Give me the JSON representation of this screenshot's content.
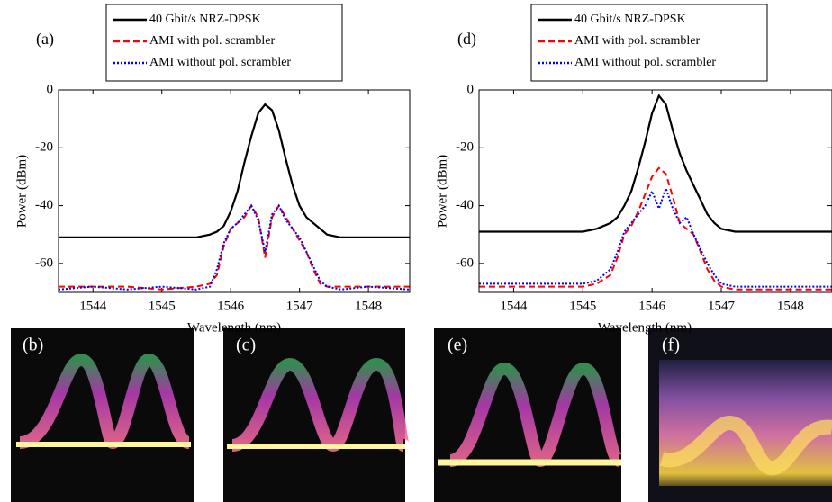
{
  "chart_data": [
    {
      "type": "line",
      "panel_label": "(a)",
      "xlabel": "Wavelength (nm)",
      "ylabel": "Power (dBm)",
      "x": [
        1543.5,
        1544.0,
        1544.5,
        1545.0,
        1545.5,
        1545.7,
        1545.8,
        1545.9,
        1546.0,
        1546.1,
        1546.2,
        1546.3,
        1546.4,
        1546.5,
        1546.6,
        1546.7,
        1546.8,
        1546.9,
        1547.0,
        1547.1,
        1547.2,
        1547.3,
        1547.4,
        1547.6,
        1548.0,
        1548.6
      ],
      "series": [
        {
          "name": "40 Gbit/s NRZ-DPSK",
          "color": "#000000",
          "linestyle": "solid",
          "values": [
            -51,
            -51,
            -51,
            -51,
            -51,
            -50,
            -49,
            -47,
            -42,
            -35,
            -25,
            -16,
            -8,
            -5,
            -7,
            -14,
            -24,
            -33,
            -40,
            -44,
            -46,
            -48,
            -50,
            -51,
            -51,
            -51
          ]
        },
        {
          "name": "AMI with pol. scrambler",
          "color": "#ff0000",
          "linestyle": "dashed",
          "values": [
            -68,
            -68,
            -68,
            -69,
            -68,
            -67,
            -64,
            -54,
            -48,
            -46,
            -44,
            -40,
            -44,
            -58,
            -44,
            -40,
            -44,
            -48,
            -52,
            -56,
            -62,
            -67,
            -68,
            -68,
            -68,
            -68
          ]
        },
        {
          "name": "AMI without pol. scrambler",
          "color": "#0000ff",
          "linestyle": "dotted",
          "values": [
            -69,
            -68,
            -69,
            -68,
            -69,
            -68,
            -62,
            -53,
            -48,
            -46,
            -43,
            -40,
            -45,
            -56,
            -43,
            -40,
            -45,
            -48,
            -51,
            -56,
            -61,
            -66,
            -68,
            -69,
            -68,
            -69
          ]
        }
      ],
      "xlim": [
        1543.5,
        1548.6
      ],
      "ylim": [
        -70,
        0
      ],
      "xticks": [
        1544,
        1545,
        1546,
        1547,
        1548
      ],
      "yticks": [
        0,
        -20,
        -40,
        -60
      ],
      "legend": "above"
    },
    {
      "type": "line",
      "panel_label": "(d)",
      "xlabel": "Wavelength (nm)",
      "ylabel": "Power (dBm)",
      "x": [
        1543.5,
        1544.0,
        1544.5,
        1545.0,
        1545.2,
        1545.4,
        1545.5,
        1545.6,
        1545.7,
        1545.8,
        1545.9,
        1546.0,
        1546.1,
        1546.2,
        1546.3,
        1546.4,
        1546.5,
        1546.6,
        1546.7,
        1546.8,
        1546.9,
        1547.0,
        1547.2,
        1547.6,
        1548.0,
        1548.6
      ],
      "series": [
        {
          "name": "40 Gbit/s NRZ-DPSK",
          "color": "#000000",
          "linestyle": "solid",
          "values": [
            -49,
            -49,
            -49,
            -49,
            -48,
            -46,
            -44,
            -40,
            -35,
            -27,
            -18,
            -8,
            -2,
            -5,
            -14,
            -22,
            -28,
            -33,
            -38,
            -43,
            -46,
            -48,
            -49,
            -49,
            -49,
            -49
          ]
        },
        {
          "name": "AMI with pol. scrambler",
          "color": "#ff0000",
          "linestyle": "dashed",
          "values": [
            -68,
            -68,
            -68,
            -68,
            -67,
            -64,
            -58,
            -50,
            -47,
            -42,
            -36,
            -30,
            -27,
            -29,
            -37,
            -46,
            -48,
            -50,
            -56,
            -62,
            -66,
            -68,
            -69,
            -69,
            -69,
            -69
          ]
        },
        {
          "name": "AMI without pol. scrambler",
          "color": "#0000ff",
          "linestyle": "dotted",
          "values": [
            -67,
            -67,
            -67,
            -67,
            -66,
            -62,
            -56,
            -49,
            -46,
            -43,
            -40,
            -35,
            -41,
            -34,
            -41,
            -46,
            -44,
            -50,
            -55,
            -60,
            -64,
            -67,
            -68,
            -68,
            -68,
            -68
          ]
        }
      ],
      "xlim": [
        1543.5,
        1548.6
      ],
      "ylim": [
        -70,
        0
      ],
      "xticks": [
        1544,
        1545,
        1546,
        1547,
        1548
      ],
      "yticks": [
        0,
        -20,
        -40,
        -60
      ],
      "legend": "above"
    }
  ],
  "eye_diagrams": {
    "labels": [
      "(b)",
      "(c)",
      "(e)",
      "(f)"
    ]
  }
}
